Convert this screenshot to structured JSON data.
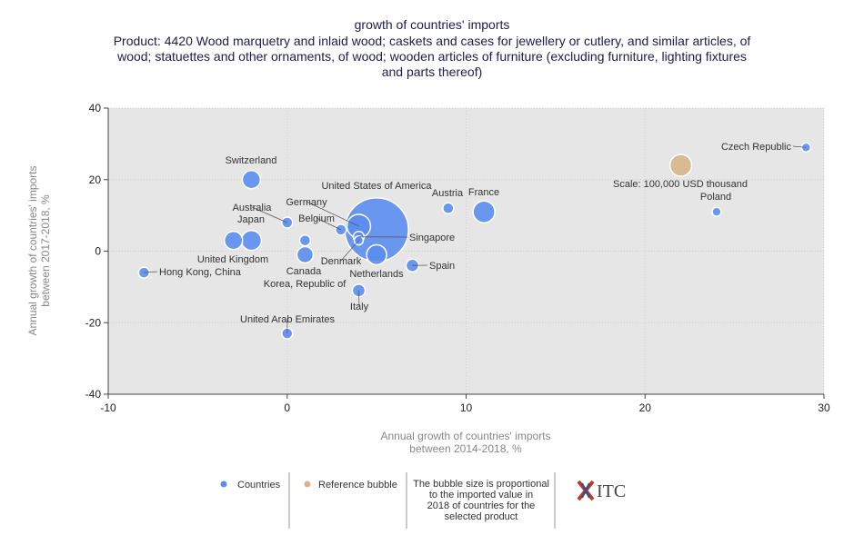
{
  "chart_data": {
    "type": "bubble",
    "title": "growth of countries' imports",
    "subtitle": [
      "Product: 4420 Wood marquetry and inlaid wood; caskets and cases for jewellery or cutlery, and similar articles, of",
      "wood; statuettes and other ornaments, of wood; wooden articles of furniture (excluding furniture, lighting fixtures",
      "and parts thereof)"
    ],
    "x_label": [
      "Annual growth of countries' imports",
      "between 2014-2018, %"
    ],
    "y_label": [
      "Annual growth of countries' imports",
      "between 2017-2018, %"
    ],
    "xlim": [
      -10,
      30
    ],
    "ylim": [
      -40,
      40
    ],
    "xticks": [
      -10,
      0,
      10,
      20,
      30
    ],
    "yticks": [
      -40,
      -20,
      0,
      20,
      40
    ],
    "grid": true,
    "series": [
      {
        "name": "Countries",
        "color": "#5b8def",
        "labels": [
          "Czech Republic",
          "Poland",
          "Switzerland",
          "Australia",
          "Japan",
          "United Kingdom",
          "Hong Kong, China",
          "Canada",
          "Korea, Republic of",
          "Belgium",
          "Germany",
          "United States of America",
          "Singapore",
          "Denmark",
          "Netherlands",
          "Italy",
          "Spain",
          "Austria",
          "France",
          "United Arab Emirates"
        ],
        "x": [
          29,
          24,
          -2,
          0,
          -2,
          -3,
          -8,
          1,
          1,
          3,
          4,
          5,
          4,
          4,
          5,
          4,
          7,
          9,
          11,
          0
        ],
        "values": [
          29,
          11,
          20,
          8,
          3,
          3,
          -6,
          -1,
          3,
          6,
          7,
          6,
          4,
          3,
          -1,
          -11,
          -4,
          12,
          11,
          -23
        ],
        "sizes": [
          17000,
          17000,
          69000,
          25000,
          84000,
          69000,
          25000,
          56000,
          25000,
          25000,
          117000,
          850000,
          25000,
          17000,
          84000,
          34000,
          34000,
          25000,
          100000,
          25000
        ]
      },
      {
        "name": "Reference bubble",
        "color": "#d6b58a",
        "labels": [
          "Scale: 100,000 USD thousand"
        ],
        "x": [
          22
        ],
        "values": [
          24
        ],
        "sizes": [
          100000
        ]
      }
    ],
    "note": [
      "The bubble size is proportional",
      "to the imported value in",
      "2018 of countries for the",
      "selected product"
    ],
    "logo": "ITC"
  }
}
